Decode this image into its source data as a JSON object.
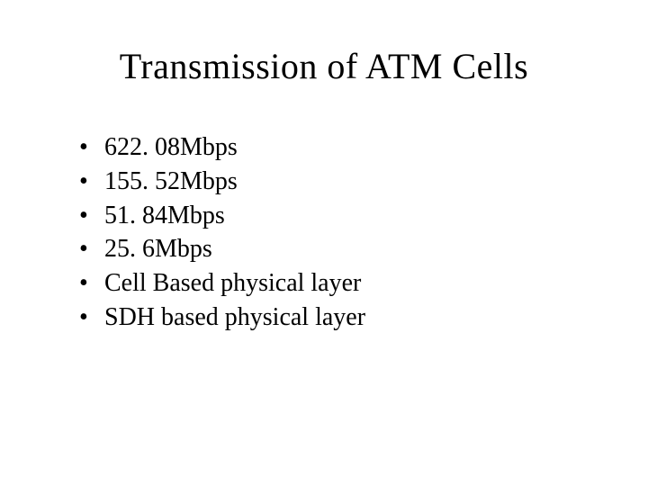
{
  "slide": {
    "title": "Transmission of ATM Cells",
    "title_fontsize": 40,
    "body_fontsize": 28,
    "background_color": "#ffffff",
    "text_color": "#000000",
    "font_family": "Times New Roman",
    "bullets": [
      {
        "marker": "•",
        "text": "622. 08Mbps"
      },
      {
        "marker": "•",
        "text": "155. 52Mbps"
      },
      {
        "marker": "•",
        "text": "51. 84Mbps"
      },
      {
        "marker": "•",
        "text": "25. 6Mbps"
      },
      {
        "marker": "•",
        "text": "Cell Based physical layer"
      },
      {
        "marker": "•",
        "text": "SDH based physical layer"
      }
    ]
  }
}
